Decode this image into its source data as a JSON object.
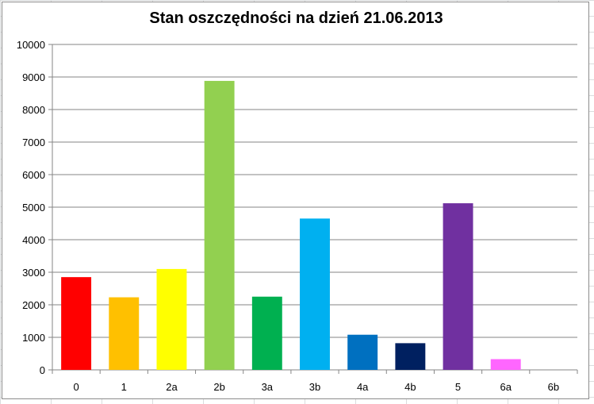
{
  "chart_data": {
    "type": "bar",
    "title": "Stan oszczędności na dzień 21.06.2013",
    "xlabel": "",
    "ylabel": "",
    "categories": [
      "0",
      "1",
      "2a",
      "2b",
      "3a",
      "3b",
      "4a",
      "4b",
      "5",
      "6a",
      "6b"
    ],
    "values": [
      2850,
      2230,
      3100,
      8880,
      2250,
      4650,
      1080,
      820,
      5120,
      330,
      0
    ],
    "colors": [
      "#ff0000",
      "#ffc000",
      "#ffff00",
      "#92d050",
      "#00b050",
      "#00b0f0",
      "#0070c0",
      "#002060",
      "#7030a0",
      "#ff66ff",
      "#ffffff"
    ],
    "ylim": [
      0,
      10000
    ],
    "yticks": [
      "0",
      "1000",
      "2000",
      "3000",
      "4000",
      "5000",
      "6000",
      "7000",
      "8000",
      "9000",
      "10000"
    ],
    "grid": true,
    "legend": "none"
  }
}
